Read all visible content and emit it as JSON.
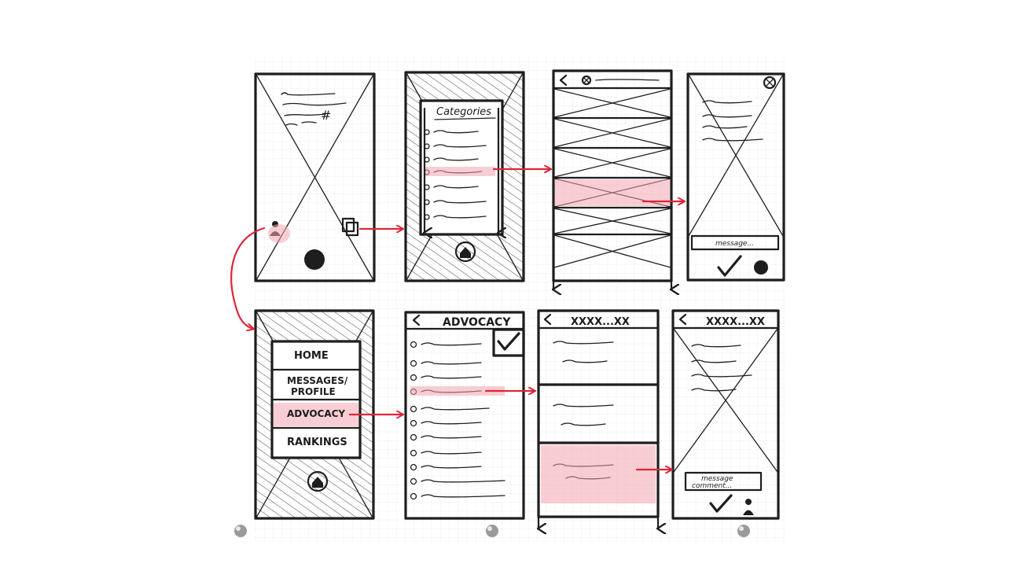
{
  "screens": {
    "categories_title": "Categories",
    "menu_items": [
      "HOME",
      "MESSAGES/",
      "PROFILE",
      "ADVOCACY",
      "RANKINGS"
    ],
    "advocacy_title": "ADVOCACY",
    "list_title": "XXXX...XX",
    "detail_title": "XXXX...XX",
    "message_label_top": "message...",
    "message_label_bottom_1": "message",
    "message_label_bottom_2": "comment..."
  },
  "colors": {
    "ink": "#1e1e1e",
    "flow_arrow": "#e0253a",
    "highlight": "#f2a6b1",
    "grid": "#dcdcdc"
  },
  "icons": [
    "back-chevron-icon",
    "close-circle-icon",
    "checkmark-icon",
    "home-icon",
    "person-icon",
    "stack-icon",
    "fist-icon",
    "pushpin-icon"
  ]
}
